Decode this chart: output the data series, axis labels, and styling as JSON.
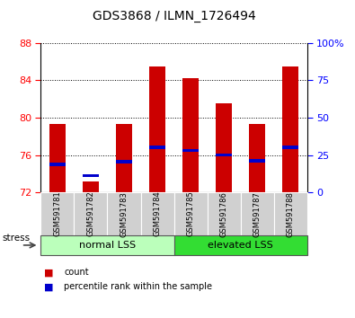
{
  "title": "GDS3868 / ILMN_1726494",
  "samples": [
    "GSM591781",
    "GSM591782",
    "GSM591783",
    "GSM591784",
    "GSM591785",
    "GSM591786",
    "GSM591787",
    "GSM591788"
  ],
  "count_values": [
    79.3,
    73.2,
    79.3,
    85.5,
    84.2,
    81.5,
    79.3,
    85.5
  ],
  "percentile_values": [
    75.0,
    73.8,
    75.3,
    76.8,
    76.5,
    76.0,
    75.4,
    76.8
  ],
  "ymin": 72,
  "ymax": 88,
  "yticks_left": [
    72,
    76,
    80,
    84,
    88
  ],
  "yticks_right_pct": [
    0,
    25,
    50,
    75,
    100
  ],
  "yticks_right_labels": [
    "0",
    "25",
    "50",
    "75",
    "100%"
  ],
  "groups": [
    {
      "label": "normal LSS",
      "start": 0,
      "end": 4,
      "color": "#bbffbb"
    },
    {
      "label": "elevated LSS",
      "start": 4,
      "end": 8,
      "color": "#33dd33"
    }
  ],
  "bar_color": "#cc0000",
  "percentile_color": "#0000cc",
  "bar_width": 0.5,
  "legend_items": [
    "count",
    "percentile rank within the sample"
  ],
  "stress_label": "stress",
  "title_fontsize": 10,
  "axis_fontsize": 8,
  "tick_label_fontsize": 8
}
